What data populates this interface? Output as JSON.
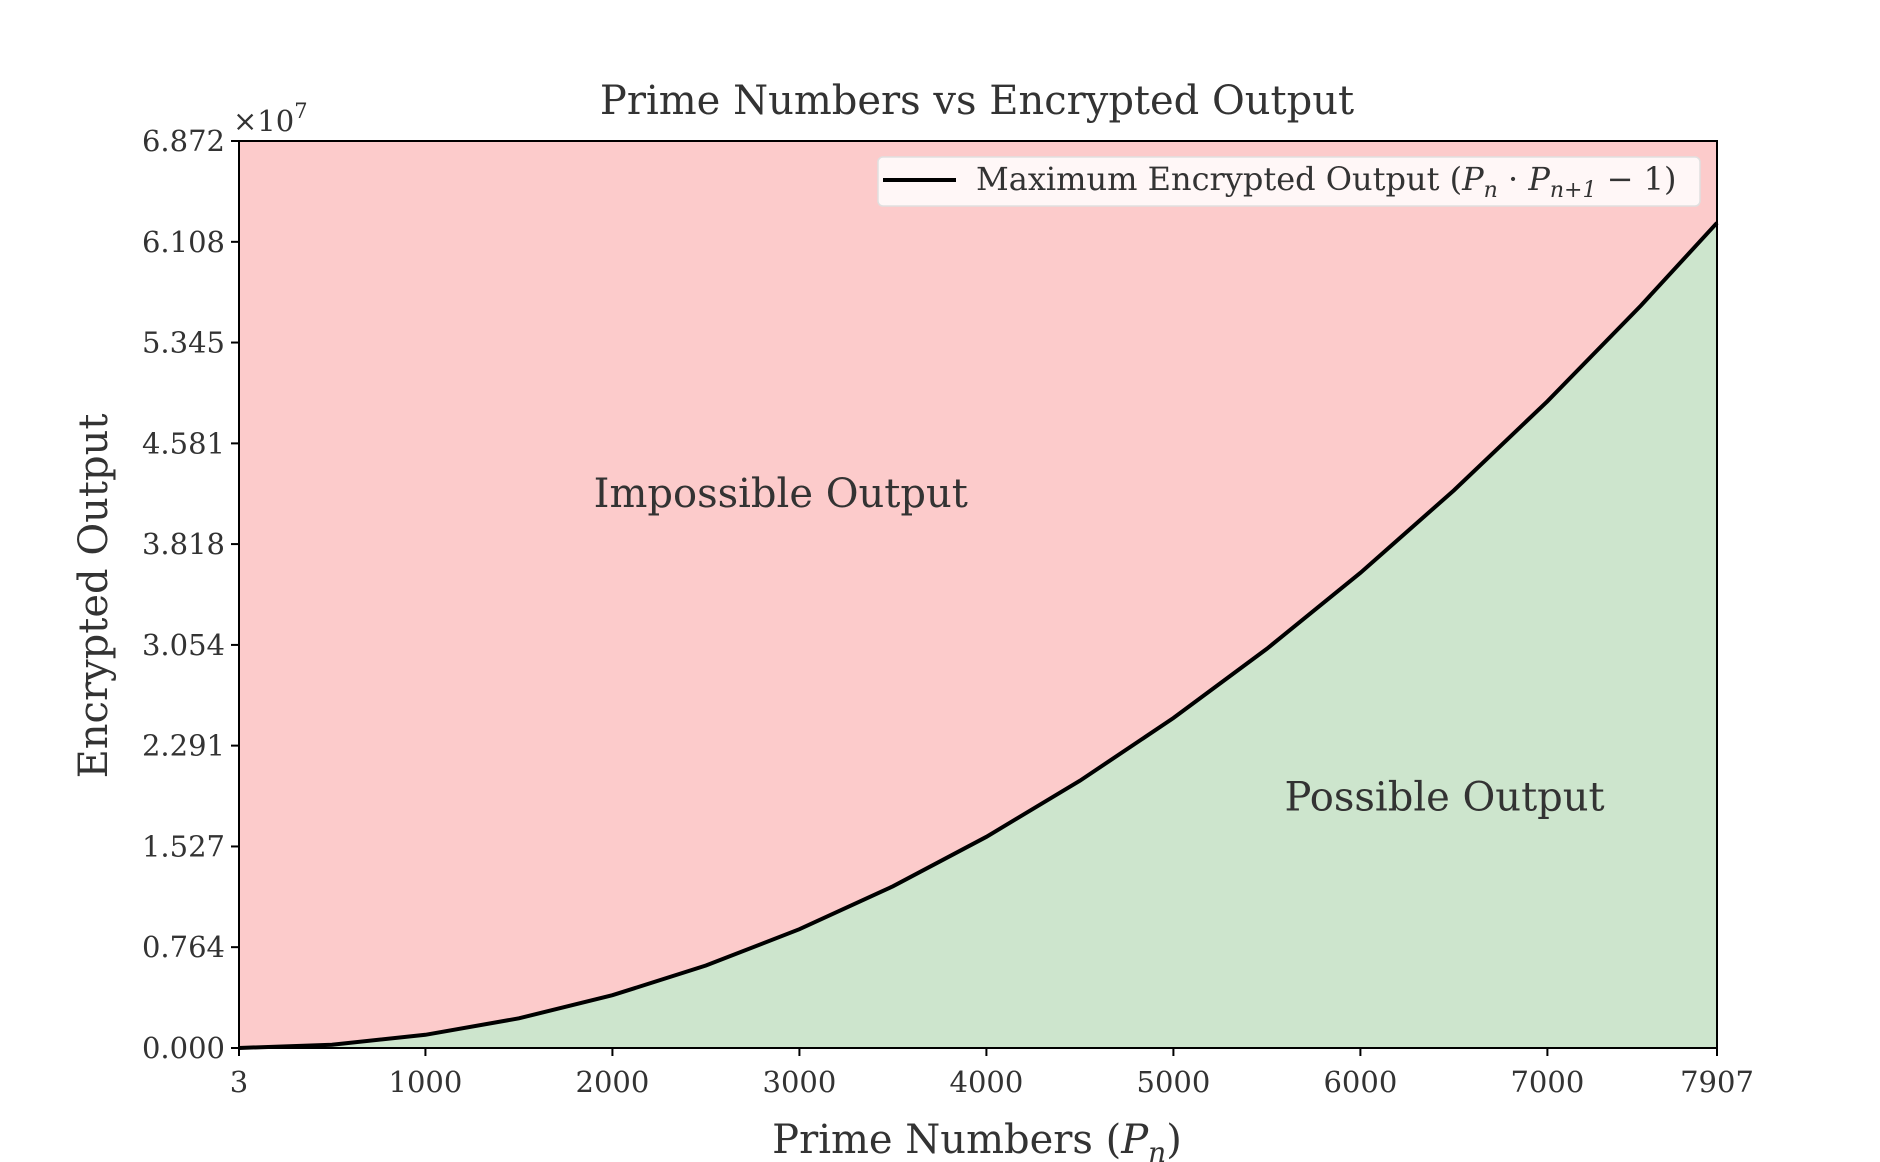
{
  "chart_data": {
    "type": "area",
    "title": "Prime Numbers vs Encrypted Output",
    "xlabel": "Prime Numbers (P_n)",
    "ylabel": "Encrypted Output",
    "y_multiplier": "×10^7",
    "xlim": [
      3,
      7907
    ],
    "ylim": [
      0,
      68720000
    ],
    "x_ticks": [
      {
        "value": 3,
        "label": "3"
      },
      {
        "value": 1000,
        "label": "1000"
      },
      {
        "value": 2000,
        "label": "2000"
      },
      {
        "value": 3000,
        "label": "3000"
      },
      {
        "value": 4000,
        "label": "4000"
      },
      {
        "value": 5000,
        "label": "5000"
      },
      {
        "value": 6000,
        "label": "6000"
      },
      {
        "value": 7000,
        "label": "7000"
      },
      {
        "value": 7907,
        "label": "7907"
      }
    ],
    "y_ticks": [
      {
        "value": 0,
        "label": "0.000"
      },
      {
        "value": 7640000,
        "label": "0.764"
      },
      {
        "value": 15270000,
        "label": "1.527"
      },
      {
        "value": 22910000,
        "label": "2.291"
      },
      {
        "value": 30540000,
        "label": "3.054"
      },
      {
        "value": 38180000,
        "label": "3.818"
      },
      {
        "value": 45810000,
        "label": "4.581"
      },
      {
        "value": 53450000,
        "label": "5.345"
      },
      {
        "value": 61080000,
        "label": "6.108"
      },
      {
        "value": 68720000,
        "label": "6.872"
      }
    ],
    "series": [
      {
        "name": "Maximum Encrypted Output (P_n · P_{n+1} − 1)",
        "x": [
          3,
          500,
          1000,
          1500,
          2000,
          2500,
          3000,
          3500,
          4000,
          4500,
          5000,
          5500,
          6000,
          6500,
          7000,
          7500,
          7907
        ],
        "values": [
          0,
          250000,
          1000000,
          2250000,
          4000000,
          6250000,
          9000000,
          12250000,
          16000000,
          20250000,
          25000000,
          30250000,
          36000000,
          42250000,
          49000000,
          56250000,
          62520000
        ]
      }
    ],
    "regions": [
      {
        "label": "Impossible Output",
        "color": "#fccbcb",
        "position": "above-curve"
      },
      {
        "label": "Possible Output",
        "color": "#cde5cd",
        "position": "below-curve"
      }
    ],
    "annotations": [
      {
        "text": "Impossible Output",
        "x": 2900,
        "y": 41000000
      },
      {
        "text": "Possible Output",
        "x": 6450,
        "y": 18000000
      }
    ],
    "legend_position": "top-right",
    "grid": false,
    "colors": {
      "line": "#000000",
      "impossible": "#fccbcb",
      "possible": "#cde5cd"
    }
  }
}
